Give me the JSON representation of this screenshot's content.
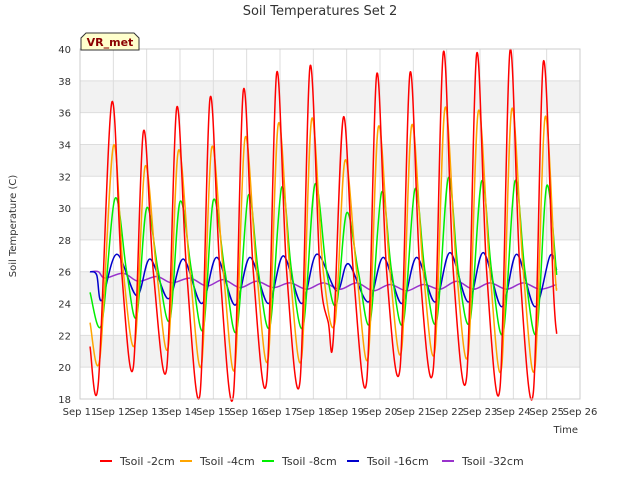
{
  "chart_data": {
    "type": "line",
    "title": "Soil Temperatures Set 2",
    "xlabel": "Time",
    "ylabel": "Soil Temperature (C)",
    "badge": "VR_met",
    "ylim": [
      18,
      40
    ],
    "yticks": [
      18,
      20,
      22,
      24,
      26,
      28,
      30,
      32,
      34,
      36,
      38,
      40
    ],
    "xlim": [
      11,
      26
    ],
    "xticks": [
      11,
      12,
      13,
      14,
      15,
      16,
      17,
      18,
      19,
      20,
      21,
      22,
      23,
      24,
      25,
      26
    ],
    "xtick_labels": [
      "Sep 11",
      "Sep 12",
      "Sep 13",
      "Sep 14",
      "Sep 15",
      "Sep 16",
      "Sep 17",
      "Sep 18",
      "Sep 19",
      "Sep 20",
      "Sep 21",
      "Sep 22",
      "Sep 23",
      "Sep 24",
      "Sep 25",
      "Sep 26"
    ],
    "grid": true,
    "legend_position": "bottom",
    "series": [
      {
        "name": "Tsoil -2cm",
        "color": "#ff0000",
        "points": [
          [
            11.3,
            21.3
          ],
          [
            11.55,
            19.0
          ],
          [
            11.95,
            36.6
          ],
          [
            12.25,
            26.0
          ],
          [
            12.6,
            20.0
          ],
          [
            12.9,
            34.8
          ],
          [
            13.2,
            26.0
          ],
          [
            13.6,
            19.9
          ],
          [
            13.9,
            36.3
          ],
          [
            14.2,
            26.0
          ],
          [
            14.6,
            18.3
          ],
          [
            14.9,
            36.9
          ],
          [
            15.2,
            26.0
          ],
          [
            15.6,
            18.2
          ],
          [
            15.9,
            37.4
          ],
          [
            16.2,
            26.0
          ],
          [
            16.6,
            19.1
          ],
          [
            16.9,
            38.5
          ],
          [
            17.2,
            26.0
          ],
          [
            17.6,
            19.1
          ],
          [
            17.9,
            38.9
          ],
          [
            18.2,
            26.0
          ],
          [
            18.45,
            22.8
          ],
          [
            18.6,
            21.8
          ],
          [
            18.9,
            35.7
          ],
          [
            19.2,
            26.0
          ],
          [
            19.6,
            19.1
          ],
          [
            19.9,
            38.4
          ],
          [
            20.2,
            26.0
          ],
          [
            20.6,
            19.9
          ],
          [
            20.9,
            38.5
          ],
          [
            21.2,
            26.0
          ],
          [
            21.6,
            19.9
          ],
          [
            21.9,
            39.8
          ],
          [
            22.2,
            26.0
          ],
          [
            22.6,
            19.4
          ],
          [
            22.9,
            39.7
          ],
          [
            23.2,
            26.0
          ],
          [
            23.6,
            18.7
          ],
          [
            23.9,
            39.9
          ],
          [
            24.2,
            26.0
          ],
          [
            24.6,
            18.4
          ],
          [
            24.9,
            39.2
          ],
          [
            25.2,
            25.0
          ],
          [
            25.3,
            22.1
          ]
        ]
      },
      {
        "name": "Tsoil -4cm",
        "color": "#ffa500",
        "points": [
          [
            11.3,
            22.8
          ],
          [
            11.6,
            20.6
          ],
          [
            12.0,
            33.9
          ],
          [
            12.3,
            26.0
          ],
          [
            12.65,
            21.5
          ],
          [
            12.95,
            32.6
          ],
          [
            13.3,
            26.0
          ],
          [
            13.65,
            21.3
          ],
          [
            13.95,
            33.6
          ],
          [
            14.3,
            26.0
          ],
          [
            14.65,
            20.2
          ],
          [
            14.95,
            33.8
          ],
          [
            15.3,
            26.0
          ],
          [
            15.65,
            20.0
          ],
          [
            15.95,
            34.4
          ],
          [
            16.3,
            26.0
          ],
          [
            16.65,
            20.6
          ],
          [
            16.95,
            35.3
          ],
          [
            17.3,
            26.0
          ],
          [
            17.65,
            20.6
          ],
          [
            17.95,
            35.6
          ],
          [
            18.3,
            26.0
          ],
          [
            18.65,
            22.8
          ],
          [
            18.95,
            33.0
          ],
          [
            19.3,
            26.0
          ],
          [
            19.65,
            20.7
          ],
          [
            19.95,
            35.1
          ],
          [
            20.3,
            26.0
          ],
          [
            20.65,
            21.1
          ],
          [
            20.95,
            35.2
          ],
          [
            21.3,
            26.0
          ],
          [
            21.65,
            21.1
          ],
          [
            21.95,
            36.3
          ],
          [
            22.3,
            26.0
          ],
          [
            22.65,
            20.9
          ],
          [
            22.95,
            36.1
          ],
          [
            23.3,
            26.0
          ],
          [
            23.65,
            20.0
          ],
          [
            23.95,
            36.2
          ],
          [
            24.3,
            26.0
          ],
          [
            24.65,
            20.0
          ],
          [
            24.95,
            35.7
          ],
          [
            25.25,
            26.0
          ],
          [
            25.3,
            24.9
          ]
        ]
      },
      {
        "name": "Tsoil -8cm",
        "color": "#00ee00",
        "points": [
          [
            11.3,
            24.7
          ],
          [
            11.65,
            22.7
          ],
          [
            12.05,
            30.6
          ],
          [
            12.4,
            26.0
          ],
          [
            12.7,
            23.2
          ],
          [
            13.0,
            30.0
          ],
          [
            13.35,
            26.0
          ],
          [
            13.7,
            23.0
          ],
          [
            14.0,
            30.4
          ],
          [
            14.35,
            26.0
          ],
          [
            14.7,
            22.4
          ],
          [
            15.0,
            30.5
          ],
          [
            15.35,
            26.0
          ],
          [
            15.7,
            22.3
          ],
          [
            16.05,
            30.8
          ],
          [
            16.35,
            26.0
          ],
          [
            16.7,
            22.6
          ],
          [
            17.05,
            31.3
          ],
          [
            17.35,
            26.0
          ],
          [
            17.7,
            22.6
          ],
          [
            18.05,
            31.5
          ],
          [
            18.4,
            26.0
          ],
          [
            18.7,
            24.0
          ],
          [
            19.0,
            29.7
          ],
          [
            19.35,
            26.0
          ],
          [
            19.7,
            22.8
          ],
          [
            20.05,
            31.0
          ],
          [
            20.35,
            26.0
          ],
          [
            20.7,
            22.8
          ],
          [
            21.05,
            31.2
          ],
          [
            21.35,
            26.0
          ],
          [
            21.7,
            22.9
          ],
          [
            22.05,
            31.9
          ],
          [
            22.35,
            26.0
          ],
          [
            22.7,
            22.9
          ],
          [
            23.05,
            31.7
          ],
          [
            23.35,
            26.0
          ],
          [
            23.7,
            22.2
          ],
          [
            24.05,
            31.7
          ],
          [
            24.35,
            26.0
          ],
          [
            24.7,
            22.2
          ],
          [
            25.0,
            31.4
          ],
          [
            25.3,
            25.8
          ]
        ]
      },
      {
        "name": "Tsoil -16cm",
        "color": "#0000cc",
        "points": [
          [
            11.3,
            26.0
          ],
          [
            11.5,
            25.8
          ],
          [
            11.65,
            24.2
          ],
          [
            12.1,
            27.1
          ],
          [
            12.7,
            24.5
          ],
          [
            13.1,
            26.8
          ],
          [
            13.65,
            24.3
          ],
          [
            14.1,
            26.8
          ],
          [
            14.65,
            24.0
          ],
          [
            15.1,
            26.9
          ],
          [
            15.65,
            23.9
          ],
          [
            16.1,
            26.9
          ],
          [
            16.65,
            24.0
          ],
          [
            17.1,
            27.0
          ],
          [
            17.65,
            24.0
          ],
          [
            18.1,
            27.1
          ],
          [
            18.7,
            24.8
          ],
          [
            19.05,
            26.5
          ],
          [
            19.65,
            24.1
          ],
          [
            20.1,
            26.9
          ],
          [
            20.65,
            24.0
          ],
          [
            21.1,
            26.9
          ],
          [
            21.65,
            24.1
          ],
          [
            22.1,
            27.2
          ],
          [
            22.65,
            24.1
          ],
          [
            23.1,
            27.2
          ],
          [
            23.65,
            23.8
          ],
          [
            24.1,
            27.1
          ],
          [
            24.65,
            23.8
          ],
          [
            25.1,
            27.0
          ],
          [
            25.3,
            26.1
          ]
        ]
      },
      {
        "name": "Tsoil -32cm",
        "color": "#9932cc",
        "points": [
          [
            11.3,
            26.0
          ],
          [
            11.55,
            26.0
          ],
          [
            11.75,
            25.6
          ],
          [
            12.3,
            25.9
          ],
          [
            12.75,
            25.4
          ],
          [
            13.3,
            25.7
          ],
          [
            13.75,
            25.3
          ],
          [
            14.3,
            25.6
          ],
          [
            14.8,
            25.1
          ],
          [
            15.3,
            25.5
          ],
          [
            15.8,
            25.0
          ],
          [
            16.3,
            25.4
          ],
          [
            16.8,
            25.0
          ],
          [
            17.3,
            25.3
          ],
          [
            17.8,
            24.9
          ],
          [
            18.3,
            25.3
          ],
          [
            18.8,
            24.9
          ],
          [
            19.3,
            25.3
          ],
          [
            19.8,
            24.8
          ],
          [
            20.3,
            25.2
          ],
          [
            20.8,
            24.8
          ],
          [
            21.3,
            25.2
          ],
          [
            21.8,
            24.9
          ],
          [
            22.3,
            25.4
          ],
          [
            22.8,
            24.9
          ],
          [
            23.3,
            25.3
          ],
          [
            23.8,
            24.9
          ],
          [
            24.3,
            25.3
          ],
          [
            24.8,
            24.9
          ],
          [
            25.3,
            25.2
          ]
        ]
      }
    ]
  }
}
